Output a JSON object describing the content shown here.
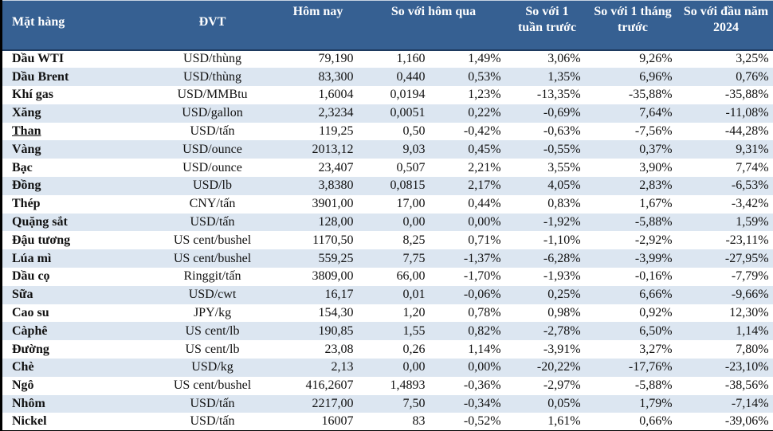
{
  "colors": {
    "header_background": "#366092",
    "header_text": "#ffffff",
    "row_stripe": "#dce6f1",
    "row_plain": "#ffffff",
    "table_border": "#000000",
    "body_text": "#111111"
  },
  "chart_data": {
    "type": "table",
    "columns": [
      "Mặt hàng",
      "ĐVT",
      "Hôm nay",
      "So với hôm qua",
      "So với 1 tuần trước",
      "So với 1 tháng trước",
      "So với đầu năm 2024"
    ],
    "rows": [
      {
        "name": "Dầu WTI",
        "unit": "USD/thùng",
        "today": "79,190",
        "change": "1,160",
        "pct_day": "1,49%",
        "pct_week": "3,06%",
        "pct_month": "9,26%",
        "pct_ytd": "3,25%"
      },
      {
        "name": "Dầu Brent",
        "unit": "USD/thùng",
        "today": "83,300",
        "change": "0,440",
        "pct_day": "0,53%",
        "pct_week": "1,35%",
        "pct_month": "6,96%",
        "pct_ytd": "0,76%"
      },
      {
        "name": "Khí gas",
        "unit": "USD/MMBtu",
        "today": "1,6004",
        "change": "0,0194",
        "pct_day": "1,23%",
        "pct_week": "-13,35%",
        "pct_month": "-35,88%",
        "pct_ytd": "-35,88%"
      },
      {
        "name": "Xăng",
        "unit": "USD/gallon",
        "today": "2,3234",
        "change": "0,0051",
        "pct_day": "0,22%",
        "pct_week": "-0,69%",
        "pct_month": "7,64%",
        "pct_ytd": "-11,08%"
      },
      {
        "name": "Than",
        "unit": "USD/tấn",
        "today": "119,25",
        "change": "0,50",
        "pct_day": "-0,42%",
        "pct_week": "-0,63%",
        "pct_month": "-7,56%",
        "pct_ytd": "-44,28%",
        "link": true
      },
      {
        "name": "Vàng",
        "unit": "USD/ounce",
        "today": "2013,12",
        "change": "9,03",
        "pct_day": "0,45%",
        "pct_week": "-0,55%",
        "pct_month": "0,37%",
        "pct_ytd": "9,31%"
      },
      {
        "name": "Bạc",
        "unit": "USD/ounce",
        "today": "23,407",
        "change": "0,507",
        "pct_day": "2,21%",
        "pct_week": "3,55%",
        "pct_month": "3,90%",
        "pct_ytd": "7,74%"
      },
      {
        "name": "Đồng",
        "unit": "USD/lb",
        "today": "3,8380",
        "change": "0,0815",
        "pct_day": "2,17%",
        "pct_week": "4,05%",
        "pct_month": "2,83%",
        "pct_ytd": "-6,53%"
      },
      {
        "name": "Thép",
        "unit": "CNY/tấn",
        "today": "3901,00",
        "change": "17,00",
        "pct_day": "0,44%",
        "pct_week": "0,83%",
        "pct_month": "1,67%",
        "pct_ytd": "-3,42%"
      },
      {
        "name": "Quặng sắt",
        "unit": "USD/tấn",
        "today": "128,00",
        "change": "0,00",
        "pct_day": "0,00%",
        "pct_week": "-1,92%",
        "pct_month": "-5,88%",
        "pct_ytd": "1,59%"
      },
      {
        "name": "Đậu tương",
        "unit": "US cent/bushel",
        "today": "1170,50",
        "change": "8,25",
        "pct_day": "0,71%",
        "pct_week": "-1,10%",
        "pct_month": "-2,92%",
        "pct_ytd": "-23,11%"
      },
      {
        "name": "Lúa mì",
        "unit": "US cent/bushel",
        "today": "559,25",
        "change": "7,75",
        "pct_day": "-1,37%",
        "pct_week": "-6,28%",
        "pct_month": "-3,99%",
        "pct_ytd": "-27,95%"
      },
      {
        "name": "Dầu cọ",
        "unit": "Ringgit/tấn",
        "today": "3809,00",
        "change": "66,00",
        "pct_day": "-1,70%",
        "pct_week": "-1,93%",
        "pct_month": "-0,16%",
        "pct_ytd": "-7,79%"
      },
      {
        "name": "Sữa",
        "unit": "USD/cwt",
        "today": "16,17",
        "change": "0,01",
        "pct_day": "-0,06%",
        "pct_week": "0,25%",
        "pct_month": "6,66%",
        "pct_ytd": "-9,66%"
      },
      {
        "name": "Cao su",
        "unit": "JPY/kg",
        "today": "154,30",
        "change": "1,20",
        "pct_day": "0,78%",
        "pct_week": "0,98%",
        "pct_month": "0,92%",
        "pct_ytd": "12,30%"
      },
      {
        "name": "Càphê",
        "unit": "US cent/lb",
        "today": "190,85",
        "change": "1,55",
        "pct_day": "0,82%",
        "pct_week": "-2,78%",
        "pct_month": "6,50%",
        "pct_ytd": "1,14%"
      },
      {
        "name": "Đường",
        "unit": "US cent/lb",
        "today": "23,08",
        "change": "0,26",
        "pct_day": "1,14%",
        "pct_week": "-3,91%",
        "pct_month": "3,27%",
        "pct_ytd": "7,80%"
      },
      {
        "name": "Chè",
        "unit": "USD/kg",
        "today": "2,13",
        "change": "0,00",
        "pct_day": "0,00%",
        "pct_week": "-20,22%",
        "pct_month": "-17,76%",
        "pct_ytd": "-23,10%"
      },
      {
        "name": "Ngô",
        "unit": "US cent/bushel",
        "today": "416,2607",
        "change": "1,4893",
        "pct_day": "-0,36%",
        "pct_week": "-2,97%",
        "pct_month": "-5,88%",
        "pct_ytd": "-38,56%"
      },
      {
        "name": "Nhôm",
        "unit": "USD/tấn",
        "today": "2217,00",
        "change": "7,50",
        "pct_day": "-0,34%",
        "pct_week": "0,05%",
        "pct_month": "1,79%",
        "pct_ytd": "-7,14%"
      },
      {
        "name": "Nickel",
        "unit": "USD/tấn",
        "today": "16007",
        "change": "83",
        "pct_day": "-0,52%",
        "pct_week": "1,61%",
        "pct_month": "0,66%",
        "pct_ytd": "-39,06%"
      }
    ]
  }
}
